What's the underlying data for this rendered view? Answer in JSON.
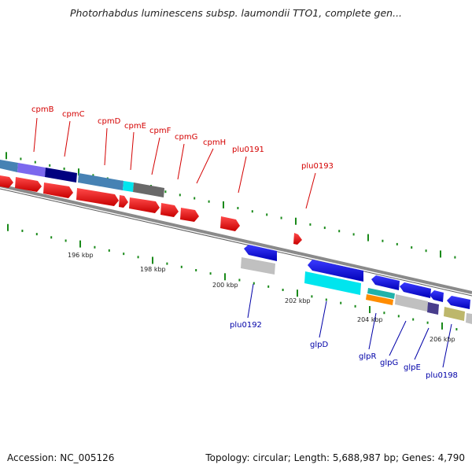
{
  "title": "Photorhabdus luminescens subsp. laumondii TTO1, complete gen...",
  "footer": {
    "accession": "Accession: NC_005126",
    "topology": "Topology: circular; Length: 5,688,987 bp; Genes: 4,790"
  },
  "kbp_labels": [
    "196 kbp",
    "198 kbp",
    "200 kbp",
    "202 kbp",
    "204 kbp",
    "206 kbp"
  ],
  "top_labels": [
    "cpmB",
    "cpmC",
    "cpmD",
    "cpmE",
    "cpmF",
    "cpmG",
    "cpmH",
    "plu0191",
    "plu0193"
  ],
  "bottom_labels": [
    "plu0192",
    "glpD",
    "glpR",
    "glpG",
    "glpE",
    "plu0198"
  ],
  "colors": {
    "forward_gene": "#ff0000",
    "reverse_gene": "#0000ff",
    "top_label": "#d40000",
    "bottom_label": "#0000a8",
    "tick": "#1a8a1a",
    "backbone": "#8a8a8a"
  }
}
